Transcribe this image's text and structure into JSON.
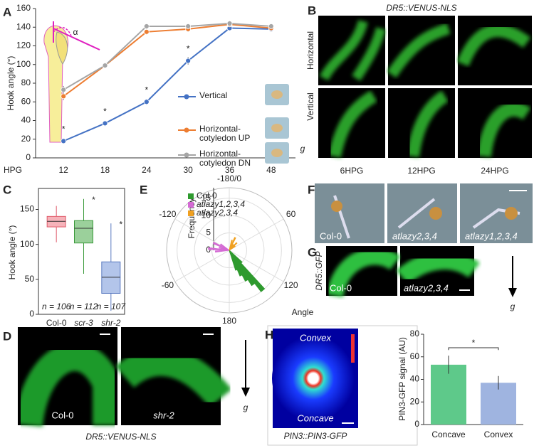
{
  "panel_labels": [
    "A",
    "B",
    "C",
    "D",
    "E",
    "F",
    "G",
    "H"
  ],
  "chart_data": [
    {
      "type": "line",
      "ylabel": "Hook angle (°)",
      "xlabel": "HPG",
      "inset_label": "α",
      "categories": [
        "12",
        "18",
        "24",
        "30",
        "36",
        "48"
      ],
      "ylim": [
        0,
        160
      ],
      "yticks": [
        0,
        20,
        40,
        60,
        80,
        100,
        120,
        140,
        160
      ],
      "series": [
        {
          "name": "Vertical",
          "color": "#4472c4",
          "values": [
            18,
            37,
            60,
            104,
            139,
            138
          ],
          "errors": [
            2,
            3,
            3,
            4,
            3,
            3
          ]
        },
        {
          "name": "Horizontal-cotyledon UP",
          "color": "#ed7d31",
          "values": [
            66,
            99,
            135,
            138,
            143,
            139
          ],
          "errors": [
            4,
            3,
            3,
            3,
            3,
            3
          ]
        },
        {
          "name": "Horizontal-cotyledon DN",
          "color": "#a5a5a5",
          "values": [
            73,
            99,
            141,
            141,
            144,
            141
          ],
          "errors": [
            4,
            3,
            3,
            3,
            3,
            3
          ]
        }
      ],
      "significance": {
        "label": "*",
        "series": 0,
        "indices": [
          0,
          1,
          2,
          3
        ]
      }
    },
    {
      "type": "box",
      "ylabel": "Hook angle (°)",
      "categories": [
        "Col-0",
        "scr-3",
        "shr-2"
      ],
      "ylim": [
        0,
        180
      ],
      "yticks": [
        0,
        50,
        100,
        150
      ],
      "n_labels": [
        "n = 106",
        "n = 112",
        "n = 107"
      ],
      "series": [
        {
          "color": "#e05a6a",
          "fill": "#f6b3ba",
          "q1": 125,
          "median": 133,
          "q3": 140,
          "whisker_low": 103,
          "whisker_high": 155
        },
        {
          "color": "#3a9a3a",
          "fill": "#9bd09b",
          "q1": 102,
          "median": 123,
          "q3": 134,
          "whisker_low": 58,
          "whisker_high": 165
        },
        {
          "color": "#5a7ac0",
          "fill": "#b3c5ea",
          "q1": 30,
          "median": 53,
          "q3": 75,
          "whisker_low": 5,
          "whisker_high": 130
        }
      ],
      "significance": {
        "label": "*",
        "indices": [
          1,
          2
        ]
      }
    },
    {
      "type": "polar",
      "ylabel": "Frequency",
      "xlabel": "Angle",
      "rlim": [
        0,
        18
      ],
      "rticks": [
        0,
        5,
        10,
        15
      ],
      "angle_ticks": [
        {
          "value": 0,
          "label": "-180/0"
        },
        {
          "value": 60,
          "label": "60"
        },
        {
          "value": 120,
          "label": "120"
        },
        {
          "value": 180,
          "label": "180"
        },
        {
          "value": 240,
          "label": "-60"
        },
        {
          "value": 300,
          "label": "-120"
        }
      ],
      "series": [
        {
          "name": "Col-0",
          "color": "#2e9a2e",
          "angles": [
            135,
            140,
            145,
            150,
            155,
            160
          ],
          "values": [
            5,
            15,
            12,
            10,
            8,
            6
          ]
        },
        {
          "name": "atlazy1,2,3,4",
          "color": "#d46ad4",
          "angles": [
            265,
            275,
            285,
            295,
            305
          ],
          "values": [
            4,
            6,
            3,
            5,
            3
          ]
        },
        {
          "name": "atlazy2,3,4",
          "color": "#f0a020",
          "angles": [
            15,
            25,
            35,
            45,
            55
          ],
          "values": [
            3,
            4,
            2,
            3,
            2
          ]
        }
      ]
    },
    {
      "type": "bar",
      "ylabel": "PIN3-GFP signal (AU)",
      "categories": [
        "Concave",
        "Convex"
      ],
      "values": [
        53,
        37
      ],
      "errors": [
        8,
        6
      ],
      "colors": [
        "#5ec98a",
        "#9fb4e0"
      ],
      "ylim": [
        0,
        80
      ],
      "yticks": [
        0,
        20,
        40,
        60,
        80
      ],
      "significance": "*"
    }
  ],
  "images": {
    "B": {
      "title": "DR5::VENUS-NLS",
      "rows": [
        "Horizontal",
        "Vertical"
      ],
      "columns": [
        "6HPG",
        "12HPG",
        "24HPG"
      ],
      "gravity": "g"
    },
    "D": {
      "labels": [
        "Col-0",
        "shr-2"
      ],
      "caption": "DR5::VENUS-NLS",
      "gravity": "g"
    },
    "F": {
      "labels": [
        "Col-0",
        "atlazy2,3,4",
        "atlazy1,2,3,4"
      ]
    },
    "G": {
      "side_label": "DR5::GFP",
      "labels": [
        "Col-0",
        "atlazy2,3,4"
      ],
      "gravity": "g"
    },
    "H": {
      "top": "Convex",
      "bottom": "Concave",
      "caption": "PIN3::PIN3-GFP"
    }
  }
}
